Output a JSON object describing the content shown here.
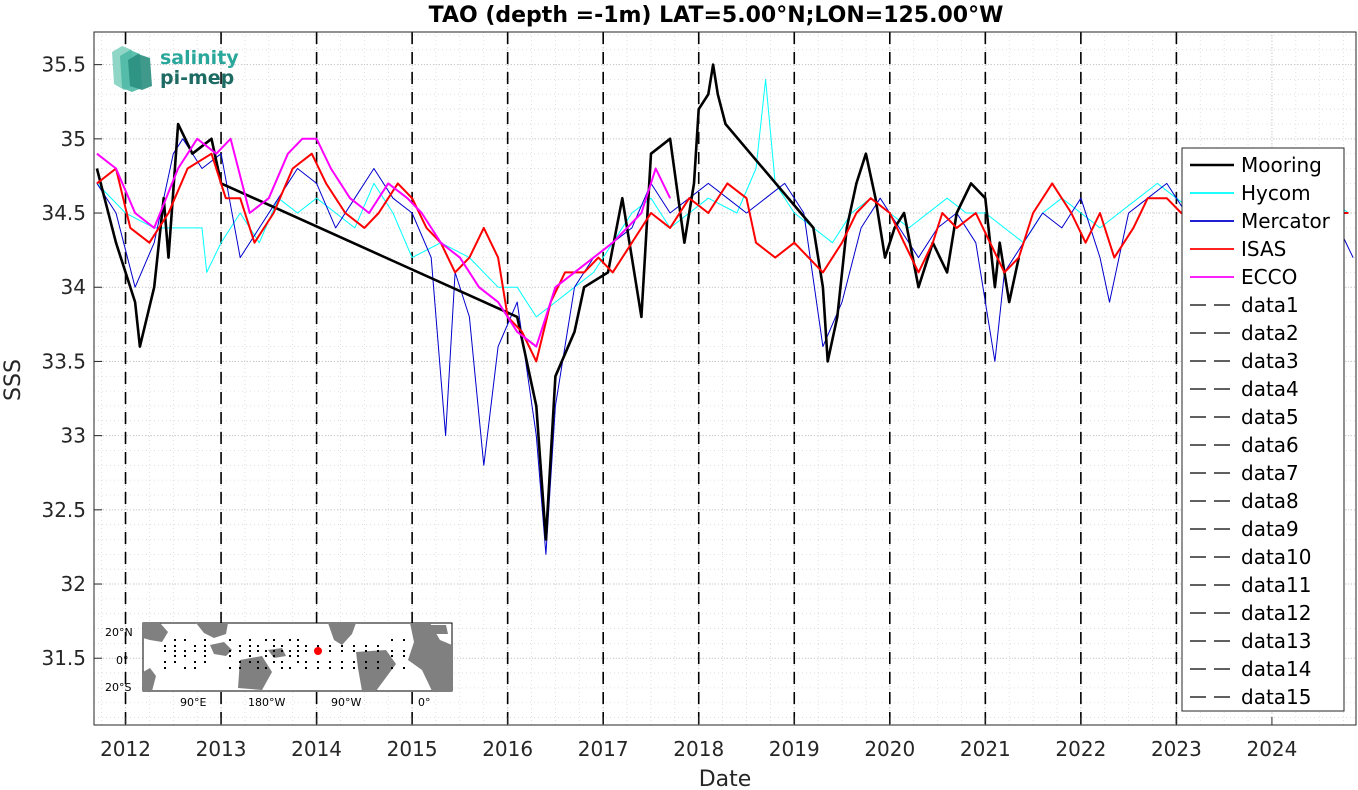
{
  "chart_data": {
    "type": "line",
    "title": "TAO (depth =-1m) LAT=5.00°N;LON=125.00°W",
    "xlabel": "Date",
    "ylabel": "SSS",
    "xlim": [
      2011.67,
      2024.88
    ],
    "ylim": [
      31.05,
      35.72
    ],
    "yticks": [
      31.5,
      32,
      32.5,
      33,
      33.5,
      34,
      34.5,
      35,
      35.5
    ],
    "xticks": [
      2012,
      2013,
      2014,
      2015,
      2016,
      2017,
      2018,
      2019,
      2020,
      2021,
      2022,
      2023,
      2024
    ],
    "vlines": [
      2012,
      2013,
      2014,
      2015,
      2016,
      2017,
      2018,
      2019,
      2020,
      2021,
      2022,
      2023
    ],
    "grid": "dotted major and minor",
    "legend_position": "right",
    "series": [
      {
        "name": "Mooring",
        "color": "#000000",
        "x": [
          2011.7,
          2011.9,
          2012.1,
          2012.15,
          2012.3,
          2012.4,
          2012.45,
          2012.55,
          2012.7,
          2012.9,
          2013.0,
          2016.1,
          2016.3,
          2016.4,
          2016.5,
          2016.7,
          2016.8,
          2017.05,
          2017.2,
          2017.4,
          2017.5,
          2017.7,
          2017.85,
          2017.95,
          2018.0,
          2018.1,
          2018.15,
          2018.2,
          2018.28,
          2019.2,
          2019.3,
          2019.35,
          2019.45,
          2019.55,
          2019.65,
          2019.75,
          2019.85,
          2019.95,
          2020.05,
          2020.15,
          2020.3,
          2020.45,
          2020.6,
          2020.7,
          2020.85,
          2021.0,
          2021.1,
          2021.15,
          2021.25,
          2021.35
        ],
        "y": [
          34.8,
          34.3,
          33.9,
          33.6,
          34.0,
          34.6,
          34.2,
          35.1,
          34.9,
          35.0,
          34.7,
          33.8,
          33.2,
          32.3,
          33.4,
          33.7,
          34.0,
          34.1,
          34.6,
          33.8,
          34.9,
          35.0,
          34.3,
          34.7,
          35.2,
          35.3,
          35.5,
          35.3,
          35.1,
          34.4,
          34.0,
          33.5,
          33.8,
          34.4,
          34.7,
          34.9,
          34.6,
          34.2,
          34.4,
          34.5,
          34.0,
          34.3,
          34.1,
          34.5,
          34.7,
          34.6,
          34.0,
          34.3,
          33.9,
          34.2
        ]
      },
      {
        "name": "Hycom",
        "color": "#00ffff",
        "x": [
          2011.7,
          2012.0,
          2012.3,
          2012.6,
          2012.8,
          2012.85,
          2013.0,
          2013.2,
          2013.4,
          2013.6,
          2013.8,
          2014.0,
          2014.2,
          2014.4,
          2014.6,
          2014.8,
          2015.0,
          2015.3,
          2015.6,
          2015.9,
          2016.1,
          2016.3,
          2016.5,
          2016.7,
          2016.9,
          2017.1,
          2017.3,
          2017.5,
          2017.7,
          2017.9,
          2018.1,
          2018.4,
          2018.6,
          2018.7,
          2018.8,
          2019.0,
          2019.2,
          2019.4,
          2019.6,
          2019.8,
          2020.0,
          2020.2,
          2020.4,
          2020.6,
          2020.8,
          2021.0,
          2021.2,
          2021.4,
          2021.6,
          2021.8,
          2022.0,
          2022.2,
          2022.4,
          2022.6,
          2022.8,
          2023.0,
          2023.2,
          2023.4,
          2023.6,
          2023.8,
          2024.0,
          2024.2,
          2024.4,
          2024.6,
          2024.8
        ],
        "y": [
          34.7,
          34.5,
          34.4,
          34.4,
          34.4,
          34.1,
          34.3,
          34.5,
          34.3,
          34.6,
          34.5,
          34.6,
          34.5,
          34.4,
          34.7,
          34.5,
          34.2,
          34.3,
          34.2,
          34.0,
          34.0,
          33.8,
          33.9,
          34.0,
          34.1,
          34.3,
          34.5,
          34.6,
          34.4,
          34.5,
          34.6,
          34.5,
          34.8,
          35.4,
          34.7,
          34.5,
          34.4,
          34.3,
          34.5,
          34.6,
          34.5,
          34.4,
          34.5,
          34.6,
          34.5,
          34.5,
          34.4,
          34.3,
          34.5,
          34.6,
          34.5,
          34.4,
          34.5,
          34.6,
          34.7,
          34.6,
          34.5,
          34.6,
          34.7,
          34.6,
          34.5,
          34.6,
          34.5,
          34.6,
          34.5
        ]
      },
      {
        "name": "Mercator",
        "color": "#0000cd",
        "x": [
          2011.7,
          2011.9,
          2012.1,
          2012.3,
          2012.5,
          2012.6,
          2012.8,
          2013.0,
          2013.2,
          2013.4,
          2013.6,
          2013.8,
          2014.0,
          2014.2,
          2014.4,
          2014.6,
          2014.8,
          2015.0,
          2015.2,
          2015.35,
          2015.45,
          2015.6,
          2015.75,
          2015.9,
          2016.1,
          2016.3,
          2016.4,
          2016.5,
          2016.7,
          2016.9,
          2017.1,
          2017.3,
          2017.5,
          2017.7,
          2017.9,
          2018.1,
          2018.3,
          2018.5,
          2018.7,
          2018.9,
          2019.1,
          2019.3,
          2019.5,
          2019.7,
          2019.9,
          2020.1,
          2020.3,
          2020.5,
          2020.7,
          2020.9,
          2021.1,
          2021.2,
          2021.4,
          2021.6,
          2021.8,
          2022.0,
          2022.2,
          2022.3,
          2022.5,
          2022.7,
          2022.9,
          2023.1,
          2023.3,
          2023.5,
          2023.7,
          2023.9,
          2024.1,
          2024.3,
          2024.5,
          2024.7,
          2024.85
        ],
        "y": [
          34.7,
          34.5,
          34.0,
          34.3,
          34.9,
          35.0,
          34.8,
          34.9,
          34.2,
          34.4,
          34.6,
          34.8,
          34.7,
          34.4,
          34.6,
          34.8,
          34.6,
          34.5,
          34.2,
          33.0,
          34.1,
          33.8,
          32.8,
          33.6,
          33.9,
          33.0,
          32.2,
          33.2,
          34.0,
          34.2,
          34.3,
          34.4,
          34.7,
          34.5,
          34.6,
          34.7,
          34.6,
          34.5,
          34.6,
          34.7,
          34.5,
          33.6,
          33.9,
          34.4,
          34.6,
          34.4,
          34.2,
          34.4,
          34.5,
          34.3,
          33.5,
          34.1,
          34.3,
          34.5,
          34.4,
          34.6,
          34.2,
          33.9,
          34.5,
          34.6,
          34.7,
          34.5,
          34.6,
          34.7,
          34.8,
          34.6,
          34.5,
          34.7,
          34.6,
          34.4,
          34.2
        ]
      },
      {
        "name": "ISAS",
        "color": "#ff0000",
        "x": [
          2011.7,
          2011.9,
          2012.05,
          2012.25,
          2012.45,
          2012.65,
          2012.9,
          2013.05,
          2013.2,
          2013.35,
          2013.55,
          2013.75,
          2013.95,
          2014.1,
          2014.3,
          2014.5,
          2014.65,
          2014.85,
          2015.0,
          2015.15,
          2015.3,
          2015.45,
          2015.6,
          2015.75,
          2015.9,
          2016.0,
          2016.15,
          2016.3,
          2016.45,
          2016.6,
          2016.8,
          2016.95,
          2017.1,
          2017.3,
          2017.5,
          2017.7,
          2017.9,
          2018.1,
          2018.3,
          2018.5,
          2018.6,
          2018.8,
          2019.0,
          2019.15,
          2019.3,
          2019.5,
          2019.65,
          2019.8,
          2020.0,
          2020.15,
          2020.3,
          2020.45,
          2020.55,
          2020.7,
          2020.9,
          2021.05,
          2021.2,
          2021.35,
          2021.5,
          2021.7,
          2021.9,
          2022.05,
          2022.2,
          2022.35,
          2022.55,
          2022.7,
          2022.9,
          2023.05,
          2023.2,
          2023.4,
          2023.6,
          2023.8,
          2024.0,
          2024.2,
          2024.4,
          2024.6,
          2024.8
        ],
        "y": [
          34.7,
          34.8,
          34.4,
          34.3,
          34.5,
          34.8,
          34.9,
          34.6,
          34.6,
          34.3,
          34.5,
          34.8,
          34.9,
          34.7,
          34.5,
          34.4,
          34.5,
          34.7,
          34.6,
          34.4,
          34.3,
          34.1,
          34.2,
          34.4,
          34.2,
          33.8,
          33.7,
          33.5,
          33.9,
          34.1,
          34.1,
          34.2,
          34.1,
          34.3,
          34.5,
          34.4,
          34.6,
          34.5,
          34.7,
          34.6,
          34.3,
          34.2,
          34.3,
          34.2,
          34.1,
          34.3,
          34.5,
          34.6,
          34.5,
          34.3,
          34.1,
          34.3,
          34.5,
          34.4,
          34.5,
          34.3,
          34.1,
          34.2,
          34.5,
          34.7,
          34.5,
          34.3,
          34.5,
          34.2,
          34.4,
          34.6,
          34.6,
          34.5,
          34.6,
          34.7,
          34.6,
          34.5,
          34.6,
          34.7,
          34.6,
          34.5,
          34.5
        ]
      },
      {
        "name": "ECCO",
        "color": "#ff00ff",
        "x": [
          2011.7,
          2011.9,
          2012.1,
          2012.3,
          2012.55,
          2012.75,
          2012.95,
          2013.1,
          2013.3,
          2013.5,
          2013.7,
          2013.85,
          2014.0,
          2014.15,
          2014.35,
          2014.55,
          2014.75,
          2014.95,
          2015.1,
          2015.3,
          2015.5,
          2015.7,
          2015.9,
          2016.1,
          2016.3,
          2016.5,
          2016.7,
          2016.9,
          2017.1,
          2017.25,
          2017.4,
          2017.55,
          2017.7
        ],
        "y": [
          34.9,
          34.8,
          34.5,
          34.4,
          34.8,
          35.0,
          34.9,
          35.0,
          34.5,
          34.6,
          34.9,
          35.0,
          35.0,
          34.8,
          34.6,
          34.5,
          34.7,
          34.6,
          34.5,
          34.3,
          34.2,
          34.0,
          33.9,
          33.7,
          33.6,
          34.0,
          34.1,
          34.2,
          34.3,
          34.4,
          34.5,
          34.8,
          34.6
        ]
      },
      {
        "name": "data1"
      },
      {
        "name": "data2"
      },
      {
        "name": "data3"
      },
      {
        "name": "data4"
      },
      {
        "name": "data5"
      },
      {
        "name": "data6"
      },
      {
        "name": "data7"
      },
      {
        "name": "data8"
      },
      {
        "name": "data9"
      },
      {
        "name": "data10"
      },
      {
        "name": "data11"
      },
      {
        "name": "data12"
      },
      {
        "name": "data13"
      },
      {
        "name": "data14"
      },
      {
        "name": "data15"
      }
    ]
  },
  "logo": {
    "line1": "salinity",
    "line2": "pi-mep"
  },
  "inset_map": {
    "lat_ticks": [
      "20°N",
      "0°",
      "20°S"
    ],
    "lon_ticks": [
      "90°E",
      "180°W",
      "90°W",
      "0°"
    ],
    "marker_color": "#ff0000",
    "land_color": "#808080",
    "ocean_color": "#ffffff"
  }
}
